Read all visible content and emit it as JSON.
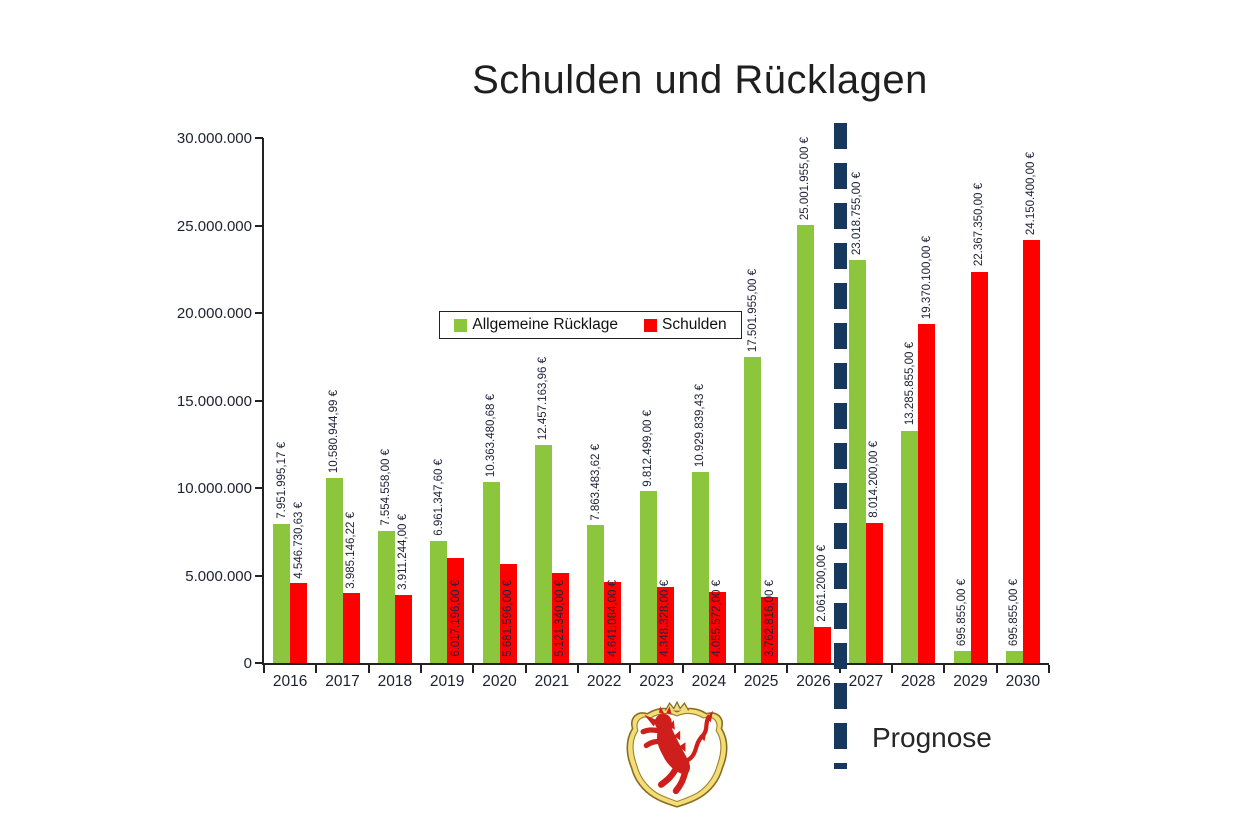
{
  "title": "Schulden und Rücklagen",
  "prognose_label": "Prognose",
  "logo": {
    "icon": "coat-of-arms-red-lion"
  },
  "colors": {
    "ruecklage_green": "#8CC63C",
    "schulden_red": "#FE0000",
    "divider_navy": "#17375D",
    "label_text": "#20243A"
  },
  "legend": {
    "items": [
      {
        "label": "Allgemeine Rücklage",
        "color": "#8CC63C"
      },
      {
        "label": "Schulden",
        "color": "#FE0000"
      }
    ]
  },
  "axes": {
    "y_tick_labels": [
      "0",
      "5.000.000",
      "10.000.000",
      "15.000.000",
      "20.000.000",
      "25.000.000",
      "30.000.000"
    ]
  },
  "chart_data": {
    "type": "bar",
    "title": "Schulden und Rücklagen",
    "categories": [
      "2016",
      "2017",
      "2018",
      "2019",
      "2020",
      "2021",
      "2022",
      "2023",
      "2024",
      "2025",
      "2026",
      "2027",
      "2028",
      "2029",
      "2030"
    ],
    "series": [
      {
        "name": "Allgemeine Rücklage",
        "color": "#8CC63C",
        "values": [
          7951995.17,
          10580944.99,
          7554558.0,
          6961347.6,
          10363480.68,
          12457163.96,
          7863483.62,
          9812499.0,
          10929839.43,
          17501955.0,
          25001955.0,
          23018755.0,
          13285855.0,
          695855.0,
          695855.0
        ],
        "data_labels": [
          "7.951.995,17 €",
          "10.580.944,99 €",
          "7.554.558,00 €",
          "6.961.347,60 €",
          "10.363.480,68 €",
          "12.457.163,96 €",
          "7.863.483,62 €",
          "9.812.499,00 €",
          "10.929.839,43 €",
          "17.501.955,00 €",
          "25.001.955,00 €",
          "23.018.755,00 €",
          "13.285.855,00 €",
          "695.855,00 €",
          "695.855,00 €"
        ],
        "label_inside_flags": [
          false,
          false,
          false,
          false,
          false,
          false,
          false,
          false,
          false,
          false,
          false,
          false,
          false,
          false,
          false
        ]
      },
      {
        "name": "Schulden",
        "color": "#FE0000",
        "values": [
          4546730.63,
          3985146.22,
          3911244.0,
          6017196.0,
          5681596.0,
          5121340.0,
          4641084.0,
          4348328.0,
          4055572.0,
          3762816.0,
          2061200.0,
          8014200.0,
          19370100.0,
          22367350.0,
          24150400.0
        ],
        "data_labels": [
          "4.546.730,63 €",
          "3.985.146,22 €",
          "3.911.244,00 €",
          "6.017.196,00 €",
          "5.681.596,00 €",
          "5.121.340,00 €",
          "4.641.084,00 €",
          "4.348.328,00 €",
          "4.055.572,00 €",
          "3.762.816,00 €",
          "2.061.200,00 €",
          "8.014.200,00 €",
          "19.370.100,00 €",
          "22.367.350,00 €",
          "24.150.400,00 €"
        ],
        "label_inside_flags": [
          false,
          false,
          false,
          true,
          true,
          true,
          true,
          true,
          true,
          true,
          false,
          false,
          false,
          false,
          false
        ]
      }
    ],
    "ylim": [
      0,
      30000000
    ],
    "y_tick_interval": 5000000,
    "y_tick_labels": [
      "0",
      "5.000.000",
      "10.000.000",
      "15.000.000",
      "20.000.000",
      "25.000.000",
      "30.000.000"
    ],
    "grid": false,
    "legend_position": "inside-top-center",
    "annotations": [
      {
        "type": "forecast-divider",
        "text": "Prognose",
        "between": [
          "2026",
          "2027"
        ]
      }
    ]
  }
}
